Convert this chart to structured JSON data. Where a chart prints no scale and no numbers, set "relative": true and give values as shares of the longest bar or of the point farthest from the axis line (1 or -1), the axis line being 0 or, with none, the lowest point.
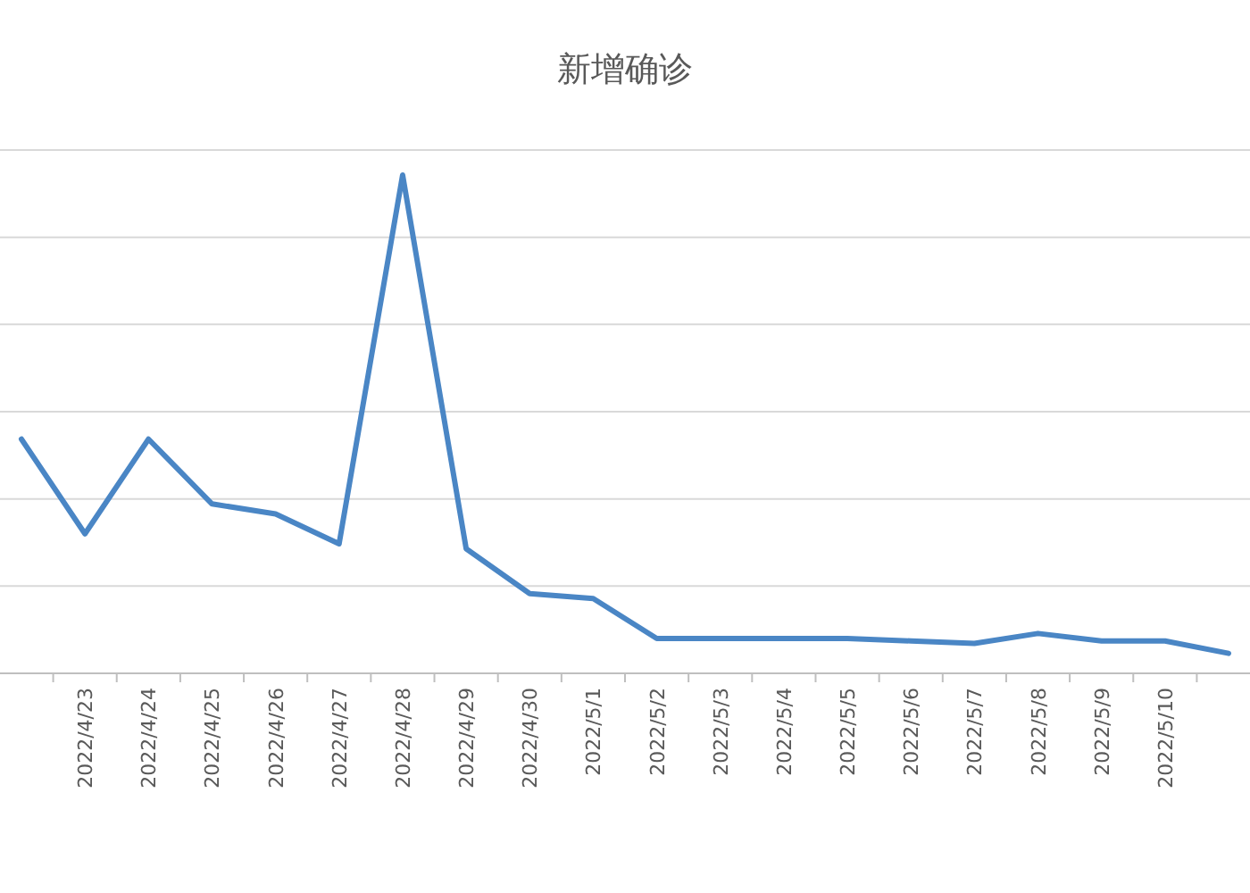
{
  "chart_data": {
    "type": "line",
    "title": "新增确诊",
    "relative": true,
    "grid": "y",
    "marker": "none",
    "line_style": "solid",
    "categories": [
      null,
      "2022/4/23",
      "2022/4/24",
      "2022/4/25",
      "2022/4/26",
      "2022/4/27",
      "2022/4/28",
      "2022/4/29",
      "2022/4/30",
      "2022/5/1",
      "2022/5/2",
      "2022/5/3",
      "2022/5/4",
      "2022/5/5",
      "2022/5/6",
      "2022/5/7",
      "2022/5/8",
      "2022/5/9",
      "2022/5/10",
      null
    ],
    "series": [
      {
        "color": "#4a86c5",
        "values": [
          0.47,
          0.28,
          0.47,
          0.34,
          0.32,
          0.26,
          1,
          0.25,
          0.16,
          0.15,
          0.07,
          0.07,
          0.07,
          0.07,
          0.065,
          0.06,
          0.08,
          0.065,
          0.065,
          0.04
        ]
      }
    ]
  }
}
